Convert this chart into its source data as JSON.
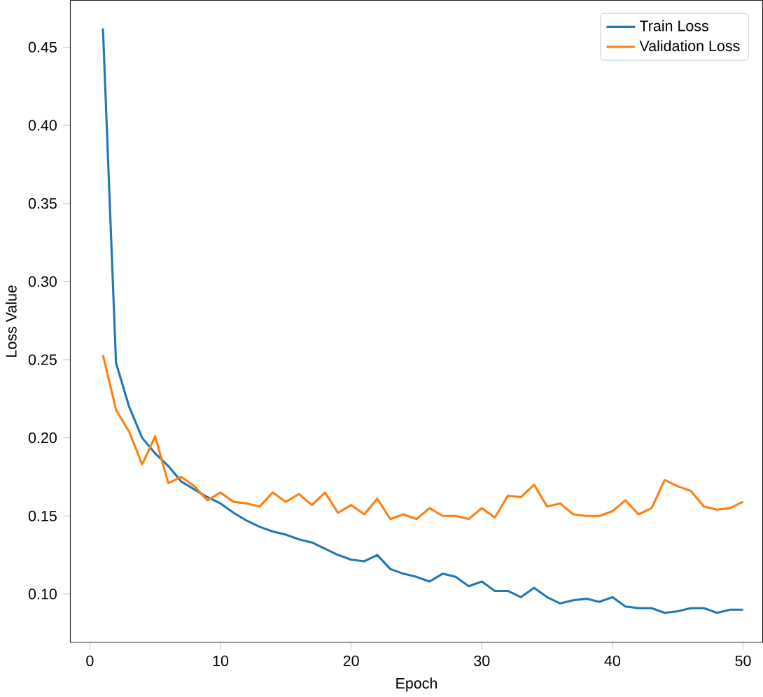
{
  "chart_data": {
    "type": "line",
    "xlabel": "Epoch",
    "ylabel": "Loss Value",
    "x": [
      1,
      2,
      3,
      4,
      5,
      6,
      7,
      8,
      9,
      10,
      11,
      12,
      13,
      14,
      15,
      16,
      17,
      18,
      19,
      20,
      21,
      22,
      23,
      24,
      25,
      26,
      27,
      28,
      29,
      30,
      31,
      32,
      33,
      34,
      35,
      36,
      37,
      38,
      39,
      40,
      41,
      42,
      43,
      44,
      45,
      46,
      47,
      48,
      49,
      50
    ],
    "series": [
      {
        "name": "Train Loss",
        "color": "#1f77b4",
        "values": [
          0.462,
          0.248,
          0.22,
          0.2,
          0.19,
          0.182,
          0.172,
          0.167,
          0.162,
          0.158,
          0.152,
          0.147,
          0.143,
          0.14,
          0.138,
          0.135,
          0.133,
          0.129,
          0.125,
          0.122,
          0.121,
          0.125,
          0.116,
          0.113,
          0.111,
          0.108,
          0.113,
          0.111,
          0.105,
          0.108,
          0.102,
          0.102,
          0.098,
          0.104,
          0.098,
          0.094,
          0.096,
          0.097,
          0.095,
          0.098,
          0.092,
          0.091,
          0.091,
          0.088,
          0.089,
          0.091,
          0.091,
          0.088,
          0.09,
          0.09
        ]
      },
      {
        "name": "Validation Loss",
        "color": "#ff7f0e",
        "values": [
          0.253,
          0.218,
          0.204,
          0.183,
          0.201,
          0.171,
          0.175,
          0.169,
          0.16,
          0.165,
          0.159,
          0.158,
          0.156,
          0.165,
          0.159,
          0.164,
          0.157,
          0.165,
          0.152,
          0.157,
          0.151,
          0.161,
          0.148,
          0.151,
          0.148,
          0.155,
          0.15,
          0.15,
          0.148,
          0.155,
          0.149,
          0.163,
          0.162,
          0.17,
          0.156,
          0.158,
          0.151,
          0.15,
          0.15,
          0.153,
          0.16,
          0.151,
          0.155,
          0.173,
          0.169,
          0.166,
          0.156,
          0.154,
          0.155,
          0.159
        ]
      }
    ],
    "xlim": [
      -1.5,
      51.5
    ],
    "ylim": [
      0.069,
      0.48
    ],
    "xticks": [
      0,
      10,
      20,
      30,
      40,
      50
    ],
    "yticks": [
      {
        "value": 0.1,
        "label": "0.10"
      },
      {
        "value": 0.15,
        "label": "0.15"
      },
      {
        "value": 0.2,
        "label": "0.20"
      },
      {
        "value": 0.25,
        "label": "0.25"
      },
      {
        "value": 0.3,
        "label": "0.30"
      },
      {
        "value": 0.35,
        "label": "0.35"
      },
      {
        "value": 0.4,
        "label": "0.40"
      },
      {
        "value": 0.45,
        "label": "0.45"
      }
    ],
    "legend": "top right",
    "grid": false,
    "line_style": "solid",
    "marker": "none"
  }
}
